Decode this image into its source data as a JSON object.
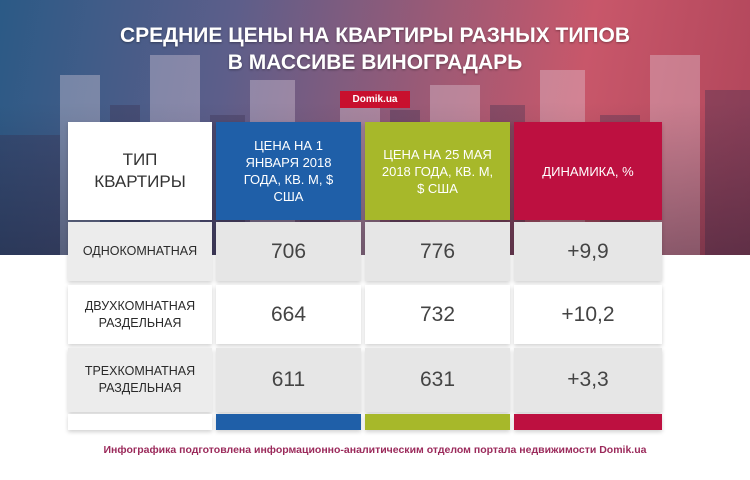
{
  "title": {
    "line1": "СРЕДНИЕ ЦЕНЫ НА КВАРТИРЫ РАЗНЫХ ТИПОВ",
    "line2": "В МАССИВЕ ВИНОГРАДАРЬ"
  },
  "brand": "Domik.ua",
  "table": {
    "headers": {
      "type": "ТИП КВАРТИРЫ",
      "price_jan": "ЦЕНА НА 1 ЯНВАРЯ 2018 ГОДА, КВ. М, $ США",
      "price_may": "ЦЕНА НА 25 МАЯ 2018 ГОДА, КВ. М, $ США",
      "dynamics": "ДИНАМИКА, %"
    },
    "rows": [
      {
        "type": "ОДНОКОМНАТНАЯ",
        "jan": "706",
        "may": "776",
        "change": "+9,9"
      },
      {
        "type": "ДВУХКОМНАТНАЯ РАЗДЕЛЬНАЯ",
        "jan": "664",
        "may": "732",
        "change": "+10,2"
      },
      {
        "type": "ТРЕХКОМНАТНАЯ РАЗДЕЛЬНАЯ",
        "jan": "611",
        "may": "631",
        "change": "+3,3"
      }
    ]
  },
  "footer": "Инфографика подготовлена информационно-аналитическим отделом портала недвижимости Domik.ua",
  "colors": {
    "blue": "#1f5fa8",
    "green": "#a7b82a",
    "red": "#bd1040",
    "brand": "#c8102e"
  }
}
